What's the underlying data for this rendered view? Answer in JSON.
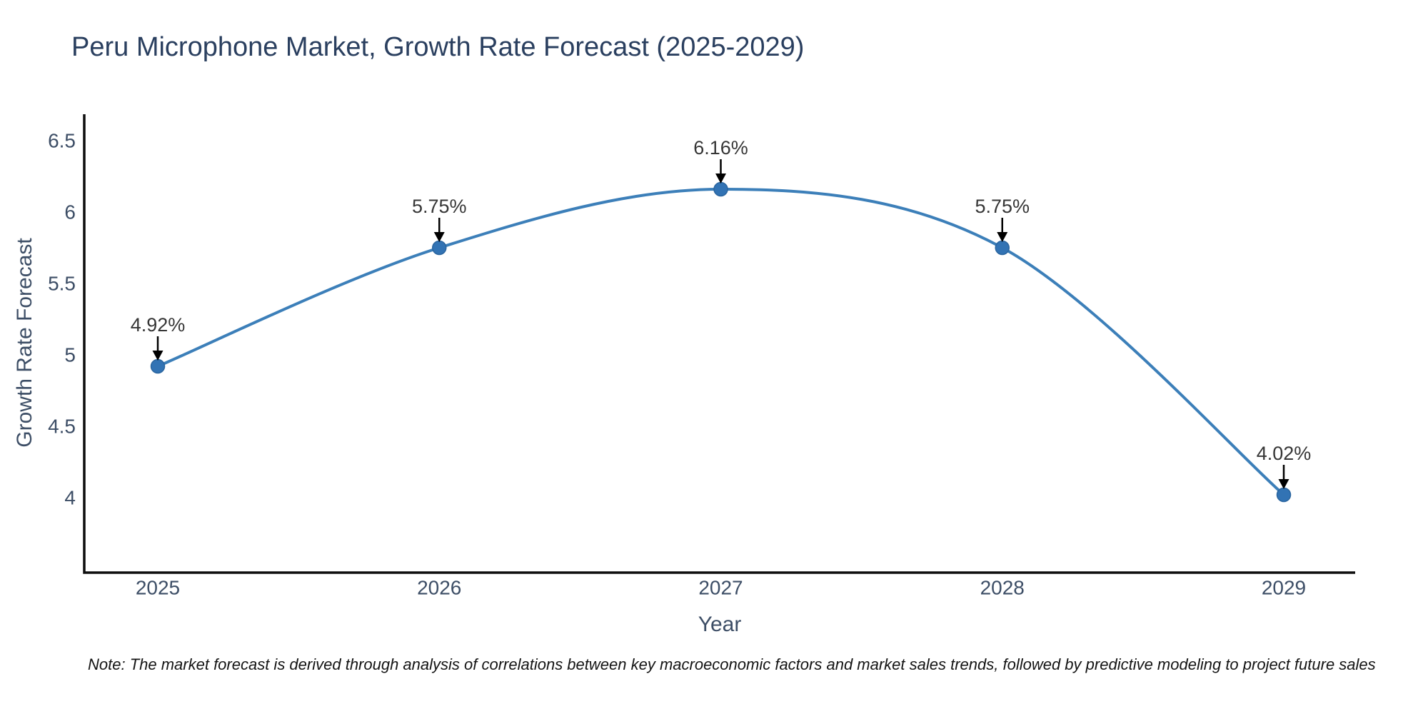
{
  "title": "Peru Microphone Market, Growth Rate Forecast (2025-2029)",
  "note": "Note: The market forecast is derived through analysis of correlations between key macroeconomic factors and market sales trends, followed by predictive modeling to project future sales",
  "chart_data": {
    "type": "line",
    "title": "Peru Microphone Market, Growth Rate Forecast (2025-2029)",
    "xlabel": "Year",
    "ylabel": "Growth Rate Forecast",
    "x": [
      2025,
      2026,
      2027,
      2028,
      2029
    ],
    "values": [
      4.92,
      5.75,
      6.16,
      5.75,
      4.02
    ],
    "point_labels": [
      "4.92%",
      "5.75%",
      "6.16%",
      "5.75%",
      "4.02%"
    ],
    "yticks": [
      4,
      4.5,
      5,
      5.5,
      6,
      6.5
    ],
    "ylim": [
      3.47,
      6.69
    ],
    "grid": false,
    "legend": false,
    "smooth": true,
    "annotations_arrow": "down-arrow-to-point"
  },
  "colors": {
    "title_text": "#2a3f5f",
    "axis_text": "#3d4e66",
    "line": "#3c7fb9",
    "marker_fill": "#3273b4",
    "marker_edge": "#2a659f",
    "arrow": "#000000",
    "annotation_text": "#363636",
    "spine": "#0d0d0d",
    "note_text": "#141414"
  }
}
